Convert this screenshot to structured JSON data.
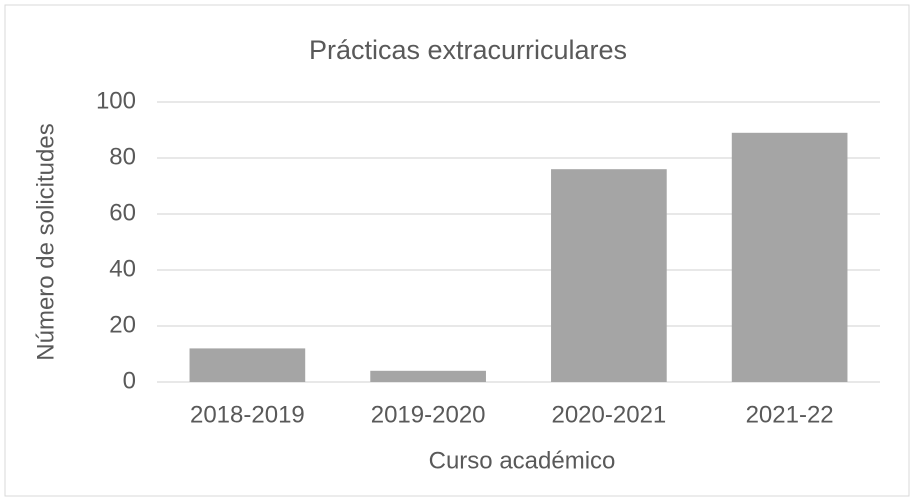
{
  "chart_data": {
    "type": "bar",
    "title": "Prácticas extracurriculares",
    "xlabel": "Curso académico",
    "ylabel": "Número de solicitudes",
    "categories": [
      "2018-2019",
      "2019-2020",
      "2020-2021",
      "2021-22"
    ],
    "values": [
      12,
      4,
      76,
      89
    ],
    "color": "#a5a5a5",
    "ylim": [
      0,
      100
    ],
    "yticks": [
      0,
      20,
      40,
      60,
      80,
      100
    ],
    "grid": true
  }
}
